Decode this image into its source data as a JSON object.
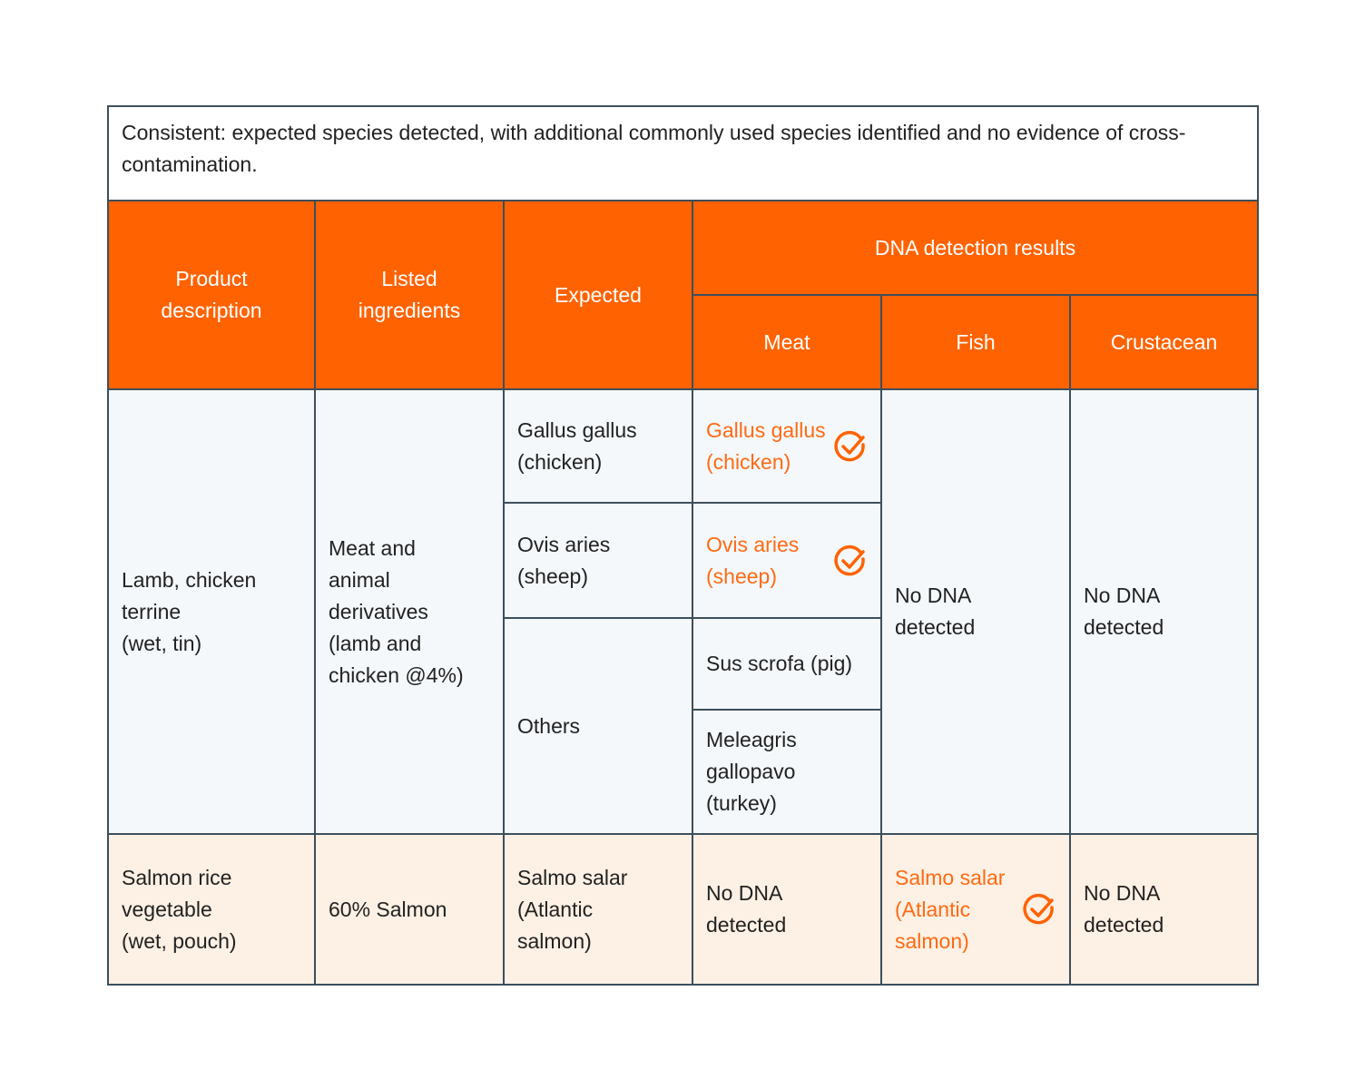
{
  "caption": "Consistent: expected species detected, with additional commonly used species identified and no evidence of cross-contamination.",
  "headers": {
    "product": "Product\ndescription",
    "ingredients": "Listed\ningredients",
    "expected": "Expected",
    "dna": "DNA detection results",
    "meat": "Meat",
    "fish": "Fish",
    "crustacean": "Crustacean"
  },
  "rows": [
    {
      "product": "Lamb, chicken\nterrine\n(wet, tin)",
      "ingredients": "Meat and\nanimal\nderivatives\n(lamb and\nchicken @4%)",
      "expected": [
        "Gallus gallus\n(chicken)",
        "Ovis aries\n(sheep)",
        "Others"
      ],
      "meat": [
        "Gallus gallus\n(chicken)",
        "Ovis aries\n(sheep)",
        "Sus scrofa (pig)",
        "Meleagris\ngallopavo\n(turkey)"
      ],
      "fish": "No DNA\ndetected",
      "crustacean": "No DNA\ndetected"
    },
    {
      "product": "Salmon rice\nvegetable\n(wet, pouch)",
      "ingredients": "60% Salmon",
      "expected": "Salmo salar\n(Atlantic\nsalmon)",
      "meat": "No DNA\ndetected",
      "fish": "Salmo salar\n(Atlantic\nsalmon)",
      "crustacean": "No DNA\ndetected"
    }
  ],
  "icons": {
    "match": "check-circle-icon"
  },
  "colors": {
    "header": "#ff6200",
    "match_text": "#ff6a13",
    "row1_bg": "#f4f8fb",
    "row2_bg": "#fdf0e4",
    "border": "#3d4f5c"
  }
}
